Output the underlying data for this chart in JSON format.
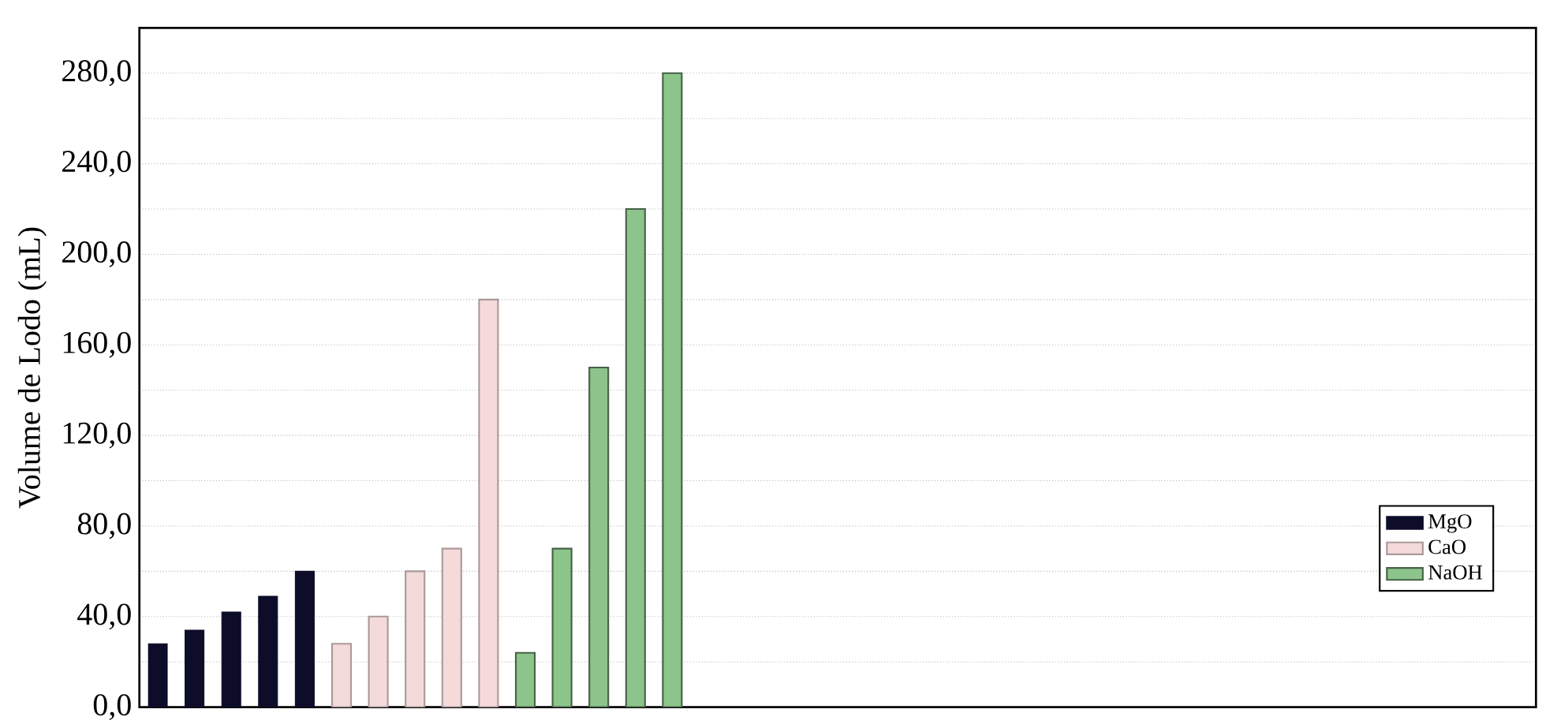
{
  "chart_data": {
    "type": "bar",
    "ylabel": "Volume de Lodo (mL)",
    "categories": [
      null,
      null,
      null,
      null,
      null,
      null,
      null,
      null,
      null,
      null,
      null,
      null,
      null,
      null,
      null,
      null,
      null,
      null,
      null,
      null,
      null,
      null,
      null,
      null,
      null,
      null,
      null,
      null,
      null,
      null,
      null,
      null,
      null,
      null,
      null,
      null,
      null,
      null
    ],
    "series": [
      {
        "name": "MgO",
        "color": "#0d0d2a",
        "values": [
          28,
          34,
          42,
          49,
          60,
          null,
          null,
          null,
          null,
          null,
          null,
          null,
          null,
          null,
          null,
          null,
          null,
          null,
          null,
          null,
          null,
          null,
          null,
          null,
          null,
          null,
          null,
          null,
          null,
          null,
          null,
          null,
          null,
          null,
          null,
          null,
          null,
          null
        ]
      },
      {
        "name": "CaO",
        "color": "#f5dada",
        "values": [
          null,
          null,
          null,
          null,
          null,
          28,
          40,
          60,
          70,
          180,
          null,
          null,
          null,
          null,
          null,
          null,
          null,
          null,
          null,
          null,
          null,
          null,
          null,
          null,
          null,
          null,
          null,
          null,
          null,
          null,
          null,
          null,
          null,
          null,
          null,
          null,
          null,
          null
        ]
      },
      {
        "name": "NaOH",
        "color": "#8cc48c",
        "values": [
          null,
          null,
          null,
          null,
          null,
          null,
          null,
          null,
          null,
          null,
          24,
          70,
          150,
          220,
          280,
          null,
          null,
          null,
          null,
          null,
          null,
          null,
          null,
          null,
          null,
          null,
          null,
          null,
          null,
          null,
          null,
          null,
          null,
          null,
          null,
          null,
          null,
          null
        ]
      }
    ],
    "ylim": [
      0,
      300
    ],
    "yticks": [
      {
        "value": 0,
        "label": "0,0"
      },
      {
        "value": 20,
        "label": null
      },
      {
        "value": 40,
        "label": "40,0"
      },
      {
        "value": 60,
        "label": null
      },
      {
        "value": 80,
        "label": "80,0"
      },
      {
        "value": 100,
        "label": null
      },
      {
        "value": 120,
        "label": "120,0"
      },
      {
        "value": 140,
        "label": null
      },
      {
        "value": 160,
        "label": "160,0"
      },
      {
        "value": 180,
        "label": null
      },
      {
        "value": 200,
        "label": "200,0"
      },
      {
        "value": 220,
        "label": null
      },
      {
        "value": 240,
        "label": "240,0"
      },
      {
        "value": 260,
        "label": null
      },
      {
        "value": 280,
        "label": "280,0"
      }
    ],
    "grid": "y",
    "legend": "right",
    "tick_labels": "y"
  }
}
